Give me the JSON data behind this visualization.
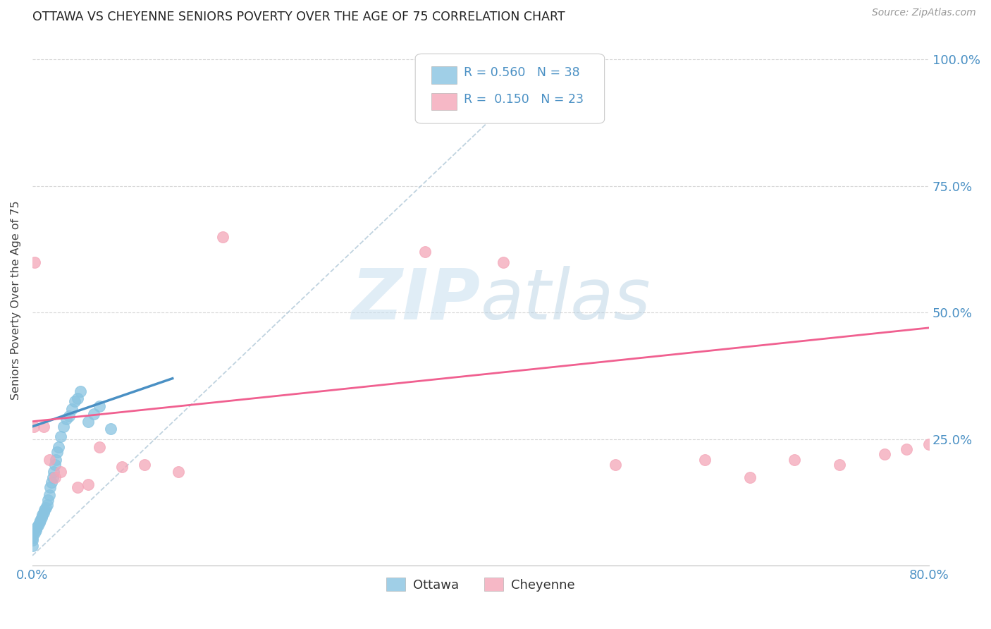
{
  "title": "OTTAWA VS CHEYENNE SENIORS POVERTY OVER THE AGE OF 75 CORRELATION CHART",
  "source": "Source: ZipAtlas.com",
  "ylabel": "Seniors Poverty Over the Age of 75",
  "xlim": [
    0.0,
    0.8
  ],
  "ylim": [
    0.0,
    1.05
  ],
  "xticks": [
    0.0,
    0.1,
    0.2,
    0.3,
    0.4,
    0.5,
    0.6,
    0.7,
    0.8
  ],
  "xticklabels": [
    "0.0%",
    "",
    "",
    "",
    "",
    "",
    "",
    "",
    "80.0%"
  ],
  "ytick_positions": [
    0.25,
    0.5,
    0.75,
    1.0
  ],
  "ytick_labels": [
    "25.0%",
    "50.0%",
    "75.0%",
    "100.0%"
  ],
  "ottawa_R": 0.56,
  "ottawa_N": 38,
  "cheyenne_R": 0.15,
  "cheyenne_N": 23,
  "ottawa_color": "#89c4e1",
  "cheyenne_color": "#f4a6b8",
  "ottawa_line_color": "#4a90c4",
  "cheyenne_line_color": "#f06090",
  "watermark_color": "#cce5f5",
  "background_color": "#ffffff",
  "grid_color": "#d8d8d8",
  "ottawa_x": [
    0.0,
    0.0,
    0.0,
    0.0,
    0.002,
    0.003,
    0.004,
    0.005,
    0.006,
    0.007,
    0.008,
    0.009,
    0.01,
    0.011,
    0.012,
    0.013,
    0.014,
    0.015,
    0.016,
    0.017,
    0.018,
    0.019,
    0.02,
    0.021,
    0.022,
    0.023,
    0.025,
    0.028,
    0.03,
    0.033,
    0.035,
    0.038,
    0.04,
    0.043,
    0.05,
    0.055,
    0.06,
    0.07
  ],
  "ottawa_y": [
    0.04,
    0.05,
    0.055,
    0.06,
    0.065,
    0.07,
    0.075,
    0.08,
    0.085,
    0.09,
    0.095,
    0.1,
    0.105,
    0.11,
    0.115,
    0.12,
    0.13,
    0.14,
    0.155,
    0.165,
    0.175,
    0.185,
    0.2,
    0.21,
    0.225,
    0.235,
    0.255,
    0.275,
    0.29,
    0.295,
    0.31,
    0.325,
    0.33,
    0.345,
    0.285,
    0.3,
    0.315,
    0.27
  ],
  "cheyenne_x": [
    0.001,
    0.002,
    0.01,
    0.015,
    0.02,
    0.025,
    0.04,
    0.05,
    0.06,
    0.08,
    0.1,
    0.13,
    0.17,
    0.35,
    0.42,
    0.52,
    0.6,
    0.64,
    0.68,
    0.72,
    0.76,
    0.78,
    0.8
  ],
  "cheyenne_y": [
    0.275,
    0.6,
    0.275,
    0.21,
    0.175,
    0.185,
    0.155,
    0.16,
    0.235,
    0.195,
    0.2,
    0.185,
    0.65,
    0.62,
    0.6,
    0.2,
    0.21,
    0.175,
    0.21,
    0.2,
    0.22,
    0.23,
    0.24
  ],
  "ottawa_trend_x": [
    0.0,
    0.125
  ],
  "ottawa_trend_y": [
    0.275,
    0.37
  ],
  "cheyenne_trend_x": [
    0.0,
    0.8
  ],
  "cheyenne_trend_y": [
    0.285,
    0.47
  ],
  "dashed_line_x": [
    0.0,
    0.47
  ],
  "dashed_line_y": [
    0.02,
    1.01
  ]
}
